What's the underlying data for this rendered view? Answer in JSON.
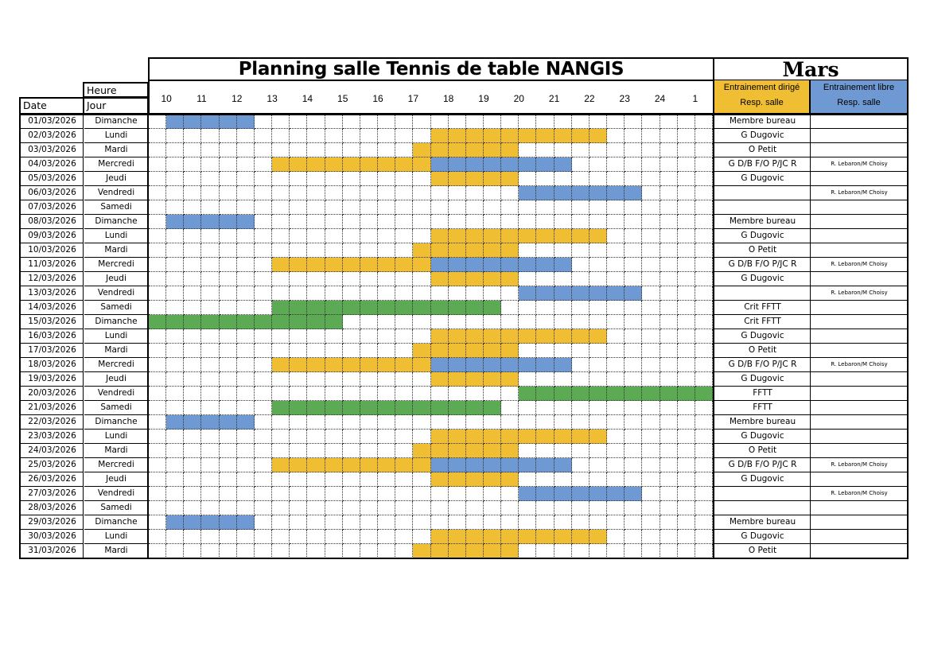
{
  "title": "Planning salle Tennis de table NANGIS",
  "month": "Mars",
  "header": {
    "heure": "Heure",
    "date": "Date",
    "jour": "Jour",
    "dirige": "Entrainement dirigé",
    "libre": "Entrainement libre",
    "resp": "Resp. salle"
  },
  "hours": [
    "10",
    "11",
    "12",
    "13",
    "14",
    "15",
    "16",
    "17",
    "18",
    "19",
    "20",
    "21",
    "22",
    "23",
    "24",
    "1"
  ],
  "colors": {
    "dirige": "#F0BE32",
    "libre": "#6F99D3",
    "competition": "#5DAA55"
  },
  "rows": [
    {
      "date": "01/03/2026",
      "jour": "Dimanche",
      "bars": [
        [
          10,
          12.5,
          "libre"
        ]
      ],
      "dirige": "Membre bureau",
      "libre": ""
    },
    {
      "date": "02/03/2026",
      "jour": "Lundi",
      "bars": [
        [
          17.5,
          22.5,
          "dirige"
        ]
      ],
      "dirige": "G Dugovic",
      "libre": ""
    },
    {
      "date": "03/03/2026",
      "jour": "Mardi",
      "bars": [
        [
          17,
          20,
          "dirige"
        ]
      ],
      "dirige": "O Petit",
      "libre": ""
    },
    {
      "date": "04/03/2026",
      "jour": "Mercredi",
      "bars": [
        [
          13,
          17.5,
          "dirige"
        ],
        [
          17.5,
          21.5,
          "libre"
        ]
      ],
      "dirige": "G D/B F/O P/JC R",
      "libre": "R. Lebaron/M Choisy"
    },
    {
      "date": "05/03/2026",
      "jour": "Jeudi",
      "bars": [
        [
          17.5,
          20,
          "dirige"
        ]
      ],
      "dirige": "G Dugovic",
      "libre": ""
    },
    {
      "date": "06/03/2026",
      "jour": "Vendredi",
      "bars": [
        [
          20,
          23.5,
          "libre"
        ]
      ],
      "dirige": "",
      "libre": "R. Lebaron/M Choisy"
    },
    {
      "date": "07/03/2026",
      "jour": "Samedi",
      "bars": [],
      "dirige": "",
      "libre": ""
    },
    {
      "date": "08/03/2026",
      "jour": "Dimanche",
      "bars": [
        [
          10,
          12.5,
          "libre"
        ]
      ],
      "dirige": "Membre bureau",
      "libre": ""
    },
    {
      "date": "09/03/2026",
      "jour": "Lundi",
      "bars": [
        [
          17.5,
          22.5,
          "dirige"
        ]
      ],
      "dirige": "G Dugovic",
      "libre": ""
    },
    {
      "date": "10/03/2026",
      "jour": "Mardi",
      "bars": [
        [
          17,
          20,
          "dirige"
        ]
      ],
      "dirige": "O Petit",
      "libre": ""
    },
    {
      "date": "11/03/2026",
      "jour": "Mercredi",
      "bars": [
        [
          13,
          17.5,
          "dirige"
        ],
        [
          17.5,
          21.5,
          "libre"
        ]
      ],
      "dirige": "G D/B F/O P/JC R",
      "libre": "R. Lebaron/M Choisy"
    },
    {
      "date": "12/03/2026",
      "jour": "Jeudi",
      "bars": [
        [
          17.5,
          20,
          "dirige"
        ]
      ],
      "dirige": "G Dugovic",
      "libre": ""
    },
    {
      "date": "13/03/2026",
      "jour": "Vendredi",
      "bars": [
        [
          20,
          23.5,
          "libre"
        ]
      ],
      "dirige": "",
      "libre": "R. Lebaron/M Choisy"
    },
    {
      "date": "14/03/2026",
      "jour": "Samedi",
      "bars": [
        [
          13,
          19.5,
          "competition"
        ]
      ],
      "dirige": "Crit FFTT",
      "libre": ""
    },
    {
      "date": "15/03/2026",
      "jour": "Dimanche",
      "bars": [
        [
          9.5,
          15,
          "competition"
        ]
      ],
      "dirige": "Crit FFTT",
      "libre": ""
    },
    {
      "date": "16/03/2026",
      "jour": "Lundi",
      "bars": [
        [
          17.5,
          22.5,
          "dirige"
        ]
      ],
      "dirige": "G Dugovic",
      "libre": ""
    },
    {
      "date": "17/03/2026",
      "jour": "Mardi",
      "bars": [
        [
          17,
          20,
          "dirige"
        ]
      ],
      "dirige": "O Petit",
      "libre": ""
    },
    {
      "date": "18/03/2026",
      "jour": "Mercredi",
      "bars": [
        [
          13,
          17.5,
          "dirige"
        ],
        [
          17.5,
          21.5,
          "libre"
        ]
      ],
      "dirige": "G D/B F/O P/JC R",
      "libre": "R. Lebaron/M Choisy"
    },
    {
      "date": "19/03/2026",
      "jour": "Jeudi",
      "bars": [
        [
          17.5,
          20,
          "dirige"
        ]
      ],
      "dirige": "G Dugovic",
      "libre": ""
    },
    {
      "date": "20/03/2026",
      "jour": "Vendredi",
      "bars": [
        [
          20,
          25.5,
          "competition"
        ]
      ],
      "dirige": "FFTT",
      "libre": ""
    },
    {
      "date": "21/03/2026",
      "jour": "Samedi",
      "bars": [
        [
          13,
          19.5,
          "competition"
        ]
      ],
      "dirige": "FFTT",
      "libre": ""
    },
    {
      "date": "22/03/2026",
      "jour": "Dimanche",
      "bars": [
        [
          10,
          12.5,
          "libre"
        ]
      ],
      "dirige": "Membre bureau",
      "libre": ""
    },
    {
      "date": "23/03/2026",
      "jour": "Lundi",
      "bars": [
        [
          17.5,
          22.5,
          "dirige"
        ]
      ],
      "dirige": "G Dugovic",
      "libre": ""
    },
    {
      "date": "24/03/2026",
      "jour": "Mardi",
      "bars": [
        [
          17,
          20,
          "dirige"
        ]
      ],
      "dirige": "O Petit",
      "libre": ""
    },
    {
      "date": "25/03/2026",
      "jour": "Mercredi",
      "bars": [
        [
          13,
          17.5,
          "dirige"
        ],
        [
          17.5,
          21.5,
          "libre"
        ]
      ],
      "dirige": "G D/B F/O P/JC R",
      "libre": "R. Lebaron/M Choisy"
    },
    {
      "date": "26/03/2026",
      "jour": "Jeudi",
      "bars": [
        [
          17.5,
          20,
          "dirige"
        ]
      ],
      "dirige": "G Dugovic",
      "libre": ""
    },
    {
      "date": "27/03/2026",
      "jour": "Vendredi",
      "bars": [
        [
          20,
          23.5,
          "libre"
        ]
      ],
      "dirige": "",
      "libre": "R. Lebaron/M Choisy"
    },
    {
      "date": "28/03/2026",
      "jour": "Samedi",
      "bars": [],
      "dirige": "",
      "libre": ""
    },
    {
      "date": "29/03/2026",
      "jour": "Dimanche",
      "bars": [
        [
          10,
          12.5,
          "libre"
        ]
      ],
      "dirige": "Membre bureau",
      "libre": ""
    },
    {
      "date": "30/03/2026",
      "jour": "Lundi",
      "bars": [
        [
          17.5,
          22.5,
          "dirige"
        ]
      ],
      "dirige": "G Dugovic",
      "libre": ""
    },
    {
      "date": "31/03/2026",
      "jour": "Mardi",
      "bars": [
        [
          17,
          20,
          "dirige"
        ]
      ],
      "dirige": "O Petit",
      "libre": ""
    }
  ]
}
